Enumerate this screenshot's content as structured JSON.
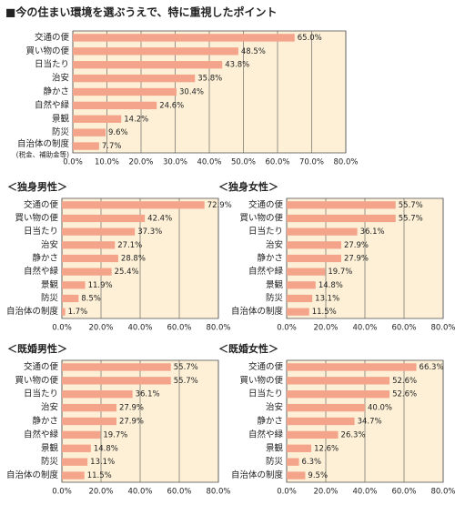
{
  "title": "■今の住まい環境を選ぶうえで、特に重視したポイント",
  "chart_data": [
    {
      "type": "bar",
      "orientation": "horizontal",
      "categories": [
        "交通の便",
        "買い物の便",
        "日当たり",
        "治安",
        "静かさ",
        "自然や緑",
        "景観",
        "防災",
        "自治体の制度"
      ],
      "category_note": "(税金、補助金等)",
      "values": [
        65.0,
        48.5,
        43.8,
        35.8,
        30.4,
        24.6,
        14.2,
        9.6,
        7.7
      ],
      "value_labels": [
        "65.0%",
        "48.5%",
        "43.8%",
        "35.8%",
        "30.4%",
        "24.6%",
        "14.2%",
        "9.6%",
        "7.7%"
      ],
      "color": "#f4a48a",
      "grid": true,
      "xlim": [
        0,
        80
      ],
      "xticks": [
        {
          "value": 0,
          "label": "0.0%"
        },
        {
          "value": 10,
          "label": "10.0%"
        },
        {
          "value": 20,
          "label": "20.0%"
        },
        {
          "value": 30,
          "label": "30.0%"
        },
        {
          "value": 40,
          "label": "40.0%"
        },
        {
          "value": 50,
          "label": "50.0%"
        },
        {
          "value": 60,
          "label": "60.0%"
        },
        {
          "value": 70,
          "label": "70.0%"
        },
        {
          "value": 80,
          "label": "80.0%"
        }
      ]
    },
    {
      "type": "bar",
      "orientation": "horizontal",
      "title": "＜独身男性＞",
      "categories": [
        "交通の便",
        "買い物の便",
        "日当たり",
        "治安",
        "静かさ",
        "自然や緑",
        "景観",
        "防災",
        "自治体の制度"
      ],
      "values": [
        72.9,
        42.4,
        37.3,
        27.1,
        28.8,
        25.4,
        11.9,
        8.5,
        1.7
      ],
      "value_labels": [
        "72.9%",
        "42.4%",
        "37.3%",
        "27.1%",
        "28.8%",
        "25.4%",
        "11.9%",
        "8.5%",
        "1.7%"
      ],
      "color": "#f4a48a",
      "grid": true,
      "xlim": [
        0,
        80
      ],
      "xticks": [
        {
          "value": 0,
          "label": "0.0%"
        },
        {
          "value": 20,
          "label": "20.0%"
        },
        {
          "value": 40,
          "label": "40.0%"
        },
        {
          "value": 60,
          "label": "60.0%"
        },
        {
          "value": 80,
          "label": "80.0%"
        }
      ]
    },
    {
      "type": "bar",
      "orientation": "horizontal",
      "title": "＜独身女性＞",
      "categories": [
        "交通の便",
        "買い物の便",
        "日当たり",
        "治安",
        "静かさ",
        "自然や緑",
        "景観",
        "防災",
        "自治体の制度"
      ],
      "values": [
        55.7,
        55.7,
        36.1,
        27.9,
        27.9,
        19.7,
        14.8,
        13.1,
        11.5
      ],
      "value_labels": [
        "55.7%",
        "55.7%",
        "36.1%",
        "27.9%",
        "27.9%",
        "19.7%",
        "14.8%",
        "13.1%",
        "11.5%"
      ],
      "color": "#f4a48a",
      "grid": true,
      "xlim": [
        0,
        80
      ],
      "xticks": [
        {
          "value": 0,
          "label": "0.0%"
        },
        {
          "value": 20,
          "label": "20.0%"
        },
        {
          "value": 40,
          "label": "40.0%"
        },
        {
          "value": 60,
          "label": "60.0%"
        },
        {
          "value": 80,
          "label": "80.0%"
        }
      ]
    },
    {
      "type": "bar",
      "orientation": "horizontal",
      "title": "＜既婚男性＞",
      "categories": [
        "交通の便",
        "買い物の便",
        "日当たり",
        "治安",
        "静かさ",
        "自然や緑",
        "景観",
        "防災",
        "自治体の制度"
      ],
      "values": [
        55.7,
        55.7,
        36.1,
        27.9,
        27.9,
        19.7,
        14.8,
        13.1,
        11.5
      ],
      "value_labels": [
        "55.7%",
        "55.7%",
        "36.1%",
        "27.9%",
        "27.9%",
        "19.7%",
        "14.8%",
        "13.1%",
        "11.5%"
      ],
      "color": "#f4a48a",
      "grid": true,
      "xlim": [
        0,
        80
      ],
      "xticks": [
        {
          "value": 0,
          "label": "0.0%"
        },
        {
          "value": 20,
          "label": "20.0%"
        },
        {
          "value": 40,
          "label": "40.0%"
        },
        {
          "value": 60,
          "label": "60.0%"
        },
        {
          "value": 80,
          "label": "80.0%"
        }
      ]
    },
    {
      "type": "bar",
      "orientation": "horizontal",
      "title": "＜既婚女性＞",
      "categories": [
        "交通の便",
        "買い物の便",
        "日当たり",
        "治安",
        "静かさ",
        "自然や緑",
        "景観",
        "防災",
        "自治体の制度"
      ],
      "values": [
        66.3,
        52.6,
        52.6,
        40.0,
        34.7,
        26.3,
        12.6,
        6.3,
        9.5
      ],
      "value_labels": [
        "66.3%",
        "52.6%",
        "52.6%",
        "40.0%",
        "34.7%",
        "26.3%",
        "12.6%",
        "6.3%",
        "9.5%"
      ],
      "color": "#f4a48a",
      "grid": true,
      "xlim": [
        0,
        80
      ],
      "xticks": [
        {
          "value": 0,
          "label": "0.0%"
        },
        {
          "value": 20,
          "label": "20.0%"
        },
        {
          "value": 40,
          "label": "40.0%"
        },
        {
          "value": 60,
          "label": "60.0%"
        },
        {
          "value": 80,
          "label": "80.0%"
        }
      ]
    }
  ]
}
